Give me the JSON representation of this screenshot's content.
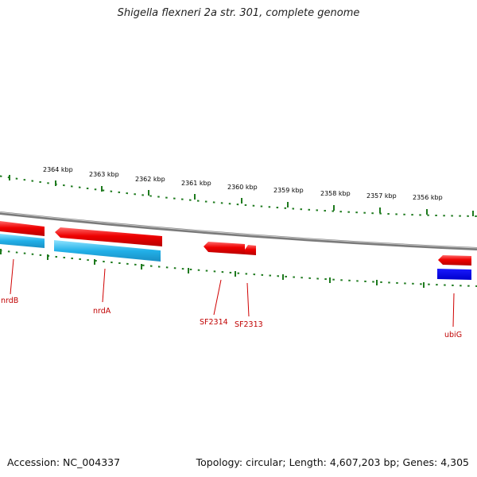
{
  "title": "Shigella flexneri 2a str. 301, complete genome",
  "footer": {
    "accession": "Accession: NC_004337",
    "info": "Topology: circular; Length: 4,607,203 bp; Genes: 4,305"
  },
  "scale_labels": [
    "2364 kbp",
    "2363 kbp",
    "2362 kbp",
    "2361 kbp",
    "2360 kbp",
    "2359 kbp",
    "2358 kbp",
    "2357 kbp",
    "2356 kbp"
  ],
  "genes": [
    "nrdB",
    "nrdA",
    "SF2314",
    "SF2313",
    "ubiG"
  ],
  "colors": {
    "backbone": "#8a8a8a",
    "tick": "#1e7a1e",
    "gene": "#ee0000",
    "cds_light": "#33bbee",
    "cds_dark": "#0000ee",
    "label": "#c00000"
  }
}
